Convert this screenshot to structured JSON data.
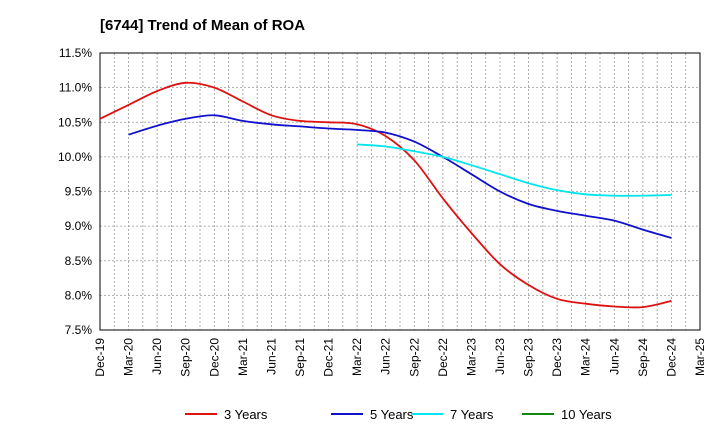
{
  "chart_data": {
    "type": "line",
    "title": "[6744]  Trend of Mean of ROA",
    "xlabel": "",
    "ylabel": "",
    "ylim": [
      7.5,
      11.5
    ],
    "yticks": [
      7.5,
      8.0,
      8.5,
      9.0,
      9.5,
      10.0,
      10.5,
      11.0,
      11.5
    ],
    "ytick_labels": [
      "7.5%",
      "8.0%",
      "8.5%",
      "9.0%",
      "9.5%",
      "10.0%",
      "10.5%",
      "11.0%",
      "11.5%"
    ],
    "x_categories": [
      "Dec-19",
      "Mar-20",
      "Jun-20",
      "Sep-20",
      "Dec-20",
      "Mar-21",
      "Jun-21",
      "Sep-21",
      "Dec-21",
      "Mar-22",
      "Jun-22",
      "Sep-22",
      "Dec-22",
      "Mar-23",
      "Jun-23",
      "Sep-23",
      "Dec-23",
      "Mar-24",
      "Jun-24",
      "Sep-24",
      "Dec-24",
      "Mar-25"
    ],
    "grid": true,
    "legend_position": "bottom",
    "series": [
      {
        "name": "3 Years",
        "color": "#dd1111",
        "values": [
          10.55,
          10.75,
          10.95,
          11.07,
          11.0,
          10.8,
          10.6,
          10.52,
          10.5,
          10.47,
          10.3,
          9.95,
          9.4,
          8.9,
          8.45,
          8.15,
          7.95,
          7.88,
          7.84,
          7.83,
          7.92,
          null
        ]
      },
      {
        "name": "5 Years",
        "color": "#1111cc",
        "values": [
          null,
          10.32,
          10.45,
          10.55,
          10.6,
          10.52,
          10.47,
          10.44,
          10.41,
          10.39,
          10.35,
          10.22,
          10.0,
          9.75,
          9.5,
          9.32,
          9.22,
          9.15,
          9.08,
          8.95,
          8.83,
          null
        ]
      },
      {
        "name": "7 Years",
        "color": "#00e5ee",
        "values": [
          null,
          null,
          null,
          null,
          null,
          null,
          null,
          null,
          null,
          10.18,
          10.15,
          10.08,
          10.0,
          9.88,
          9.75,
          9.62,
          9.52,
          9.46,
          9.44,
          9.44,
          9.45,
          null
        ]
      },
      {
        "name": "10 Years",
        "color": "#118811",
        "values": [
          null,
          null,
          null,
          null,
          null,
          null,
          null,
          null,
          null,
          null,
          null,
          null,
          null,
          null,
          null,
          null,
          null,
          null,
          null,
          null,
          null,
          null
        ]
      }
    ]
  }
}
